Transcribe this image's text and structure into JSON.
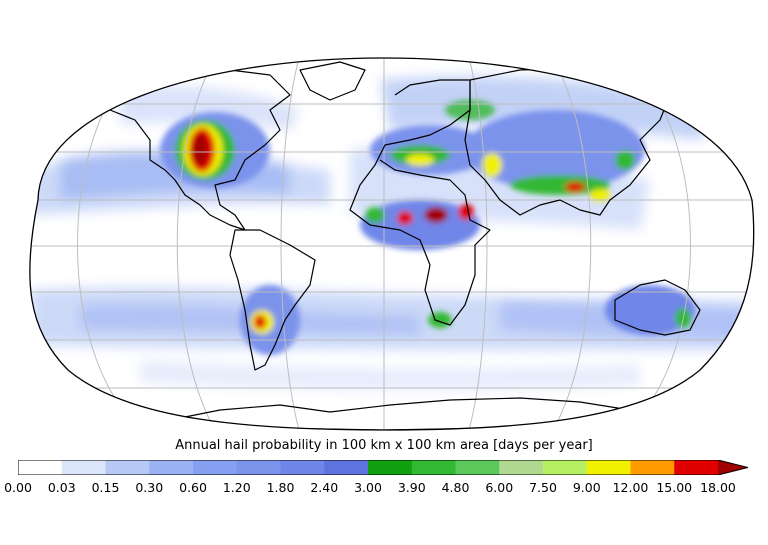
{
  "map": {
    "projection": "Robinson",
    "colors": {
      "ocean_outline": "#000000",
      "graticule": "#bdbdbd",
      "background": "#ffffff"
    }
  },
  "colorbar": {
    "title": "Annual hail probability in 100 km x 100 km area [days per year]",
    "ticks": [
      "0.00",
      "0.03",
      "0.15",
      "0.30",
      "0.60",
      "1.20",
      "1.80",
      "2.40",
      "3.00",
      "3.90",
      "4.80",
      "6.00",
      "7.50",
      "9.00",
      "12.00",
      "15.00",
      "18.00"
    ],
    "colors": [
      "#ffffff",
      "#dce6fb",
      "#b5c8f6",
      "#9ab2f3",
      "#85a0f0",
      "#7c93ec",
      "#6f86e8",
      "#5f73e0",
      "#10a010",
      "#33b833",
      "#5ac85a",
      "#b0d890",
      "#b5f060",
      "#f0f000",
      "#ff9a00",
      "#e00000",
      "#a00000"
    ],
    "extend": "max"
  }
}
